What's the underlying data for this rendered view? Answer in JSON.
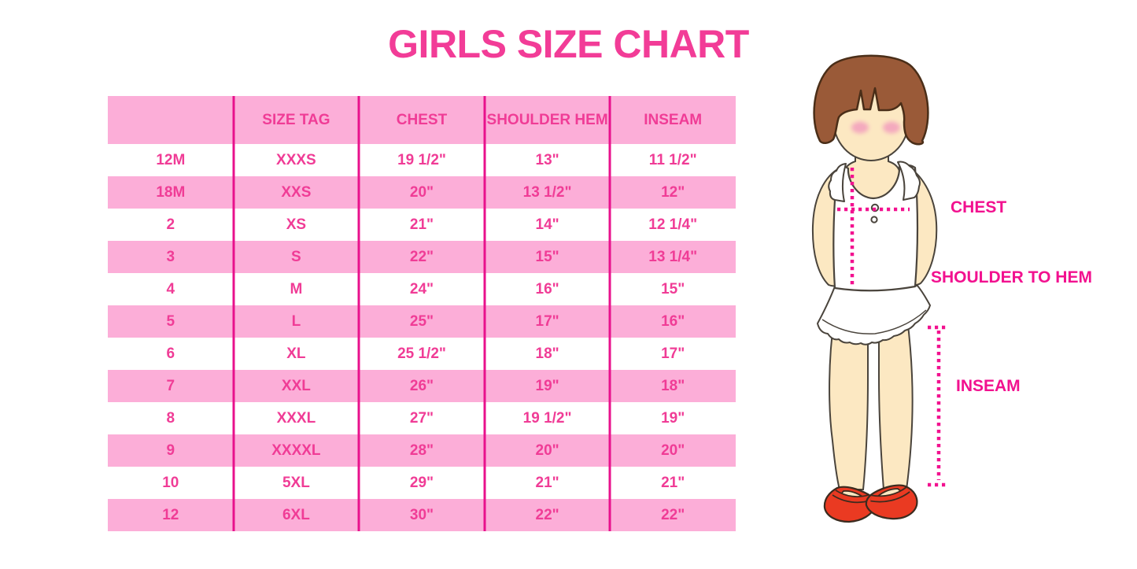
{
  "title": "GIRLS SIZE CHART",
  "colors": {
    "title_pink": "#F23C97",
    "cell_text_pink": "#F03C96",
    "row_band_pink": "#FCAED8",
    "divider_magenta": "#E8118C",
    "label_magenta": "#F2118F",
    "hair_brown": "#9A5A38",
    "skin": "#FCE8C2",
    "blush_pink": "#F4A9BE",
    "shoe_red": "#EA3A22",
    "background": "#FFFFFF"
  },
  "table": {
    "headers": [
      "",
      "SIZE TAG",
      "CHEST",
      "SHOULDER HEM",
      "INSEAM"
    ],
    "rows": [
      [
        "12M",
        "XXXS",
        "19 1/2\"",
        "13\"",
        "11 1/2\""
      ],
      [
        "18M",
        "XXS",
        "20\"",
        "13 1/2\"",
        "12\""
      ],
      [
        "2",
        "XS",
        "21\"",
        "14\"",
        "12 1/4\""
      ],
      [
        "3",
        "S",
        "22\"",
        "15\"",
        "13 1/4\""
      ],
      [
        "4",
        "M",
        "24\"",
        "16\"",
        "15\""
      ],
      [
        "5",
        "L",
        "25\"",
        "17\"",
        "16\""
      ],
      [
        "6",
        "XL",
        "25 1/2\"",
        "18\"",
        "17\""
      ],
      [
        "7",
        "XXL",
        "26\"",
        "19\"",
        "18\""
      ],
      [
        "8",
        "XXXL",
        "27\"",
        "19 1/2\"",
        "19\""
      ],
      [
        "9",
        "XXXXL",
        "28\"",
        "20\"",
        "20\""
      ],
      [
        "10",
        "5XL",
        "29\"",
        "21\"",
        "21\""
      ],
      [
        "12",
        "6XL",
        "30\"",
        "22\"",
        "22\""
      ]
    ]
  },
  "figure_labels": {
    "chest": "CHEST",
    "shoulder_to_hem": "SHOULDER TO HEM",
    "inseam": "INSEAM"
  },
  "chart_data": {
    "type": "table",
    "title": "GIRLS SIZE CHART",
    "columns": [
      "",
      "SIZE TAG",
      "CHEST",
      "SHOULDER HEM",
      "INSEAM"
    ],
    "rows": [
      [
        "12M",
        "XXXS",
        "19 1/2\"",
        "13\"",
        "11 1/2\""
      ],
      [
        "18M",
        "XXS",
        "20\"",
        "13 1/2\"",
        "12\""
      ],
      [
        "2",
        "XS",
        "21\"",
        "14\"",
        "12 1/4\""
      ],
      [
        "3",
        "S",
        "22\"",
        "15\"",
        "13 1/4\""
      ],
      [
        "4",
        "M",
        "24\"",
        "16\"",
        "15\""
      ],
      [
        "5",
        "L",
        "25\"",
        "17\"",
        "16\""
      ],
      [
        "6",
        "XL",
        "25 1/2\"",
        "18\"",
        "17\""
      ],
      [
        "7",
        "XXL",
        "26\"",
        "19\"",
        "18\""
      ],
      [
        "8",
        "XXXL",
        "27\"",
        "19 1/2\"",
        "19\""
      ],
      [
        "9",
        "XXXXL",
        "28\"",
        "20\"",
        "20\""
      ],
      [
        "10",
        "5XL",
        "29\"",
        "21\"",
        "21\""
      ],
      [
        "12",
        "6XL",
        "30\"",
        "22\"",
        "22\""
      ]
    ],
    "annotations": [
      "CHEST",
      "SHOULDER TO HEM",
      "INSEAM"
    ],
    "legend": "none",
    "grid": "vertical-column-dividers-only"
  }
}
